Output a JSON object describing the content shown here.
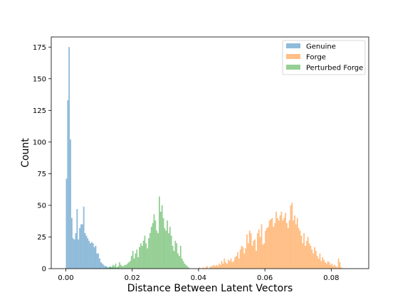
{
  "chart_data": {
    "type": "bar",
    "subtype": "histogram",
    "title": "",
    "xlabel": "Distance Between Latent Vectors",
    "ylabel": "Count",
    "xlim": [
      -0.0044,
      0.0913
    ],
    "ylim": [
      0,
      183
    ],
    "xticks": [
      0.0,
      0.02,
      0.04,
      0.06,
      0.08
    ],
    "xtick_labels": [
      "0.00",
      "0.02",
      "0.04",
      "0.06",
      "0.08"
    ],
    "yticks": [
      0,
      25,
      50,
      75,
      100,
      125,
      150,
      175
    ],
    "ytick_labels": [
      "0",
      "25",
      "50",
      "75",
      "100",
      "125",
      "150",
      "175"
    ],
    "grid": false,
    "legend_position": "top-right",
    "bin_width": 0.0004,
    "series": [
      {
        "name": "Genuine",
        "color": "#1f77b4",
        "alpha": 0.5,
        "bin_start": 0.0,
        "counts": [
          71,
          133,
          175,
          102,
          40,
          24,
          23,
          28,
          47,
          23,
          32,
          35,
          35,
          49,
          28,
          26,
          24,
          22,
          20,
          21,
          20,
          17,
          18,
          12,
          12,
          8,
          5,
          4,
          3,
          2,
          2,
          1,
          1,
          1,
          1,
          1,
          0,
          1,
          0,
          1
        ]
      },
      {
        "name": "Forge",
        "color": "#ff7f0e",
        "alpha": 0.5,
        "bin_start": 0.0,
        "counts": [
          0,
          0,
          0,
          0,
          0,
          0,
          0,
          0,
          0,
          0,
          0,
          0,
          0,
          0,
          0,
          0,
          0,
          0,
          0,
          0,
          0,
          0,
          0,
          0,
          0,
          0,
          0,
          0,
          0,
          0,
          0,
          0,
          0,
          0,
          0,
          0,
          0,
          0,
          0,
          0,
          0,
          0,
          0,
          0,
          0,
          0,
          0,
          0,
          0,
          0,
          0,
          0,
          0,
          0,
          0,
          0,
          0,
          0,
          0,
          0,
          0,
          0,
          0,
          0,
          0,
          0,
          0,
          0,
          0,
          0,
          0,
          0,
          0,
          0,
          0,
          0,
          0,
          0,
          0,
          0,
          0,
          0,
          0,
          0,
          0,
          0,
          0,
          0,
          0,
          0,
          0,
          0,
          0,
          0,
          0,
          0,
          0,
          0,
          0,
          0,
          1,
          0,
          0,
          1,
          0,
          1,
          2,
          0,
          1,
          2,
          2,
          3,
          2,
          3,
          2,
          4,
          3,
          6,
          4,
          8,
          5,
          4,
          7,
          6,
          8,
          5,
          6,
          9,
          10,
          13,
          8,
          15,
          18,
          17,
          12,
          16,
          27,
          20,
          30,
          28,
          18,
          22,
          23,
          14,
          28,
          31,
          25,
          35,
          19,
          20,
          30,
          32,
          33,
          38,
          39,
          40,
          33,
          36,
          45,
          40,
          38,
          42,
          45,
          38,
          40,
          44,
          36,
          32,
          38,
          50,
          52,
          38,
          42,
          35,
          40,
          32,
          30,
          26,
          20,
          28,
          18,
          22,
          25,
          20,
          18,
          15,
          12,
          17,
          14,
          10,
          8,
          12,
          6,
          9,
          7,
          5,
          4,
          6,
          5,
          3,
          4,
          2,
          3,
          2,
          1,
          8,
          5,
          1
        ]
      },
      {
        "name": "Perturbed Forge",
        "color": "#2ca02c",
        "alpha": 0.5,
        "bin_start": 0.0,
        "counts": [
          0,
          0,
          0,
          0,
          0,
          0,
          0,
          0,
          0,
          0,
          0,
          0,
          0,
          0,
          0,
          0,
          0,
          0,
          0,
          0,
          0,
          0,
          0,
          0,
          0,
          0,
          0,
          0,
          0,
          0,
          1,
          0,
          1,
          2,
          1,
          3,
          2,
          4,
          1,
          2,
          5,
          3,
          2,
          2,
          3,
          3,
          4,
          5,
          6,
          10,
          14,
          8,
          12,
          15,
          9,
          17,
          20,
          18,
          22,
          26,
          20,
          16,
          24,
          28,
          33,
          36,
          43,
          38,
          30,
          28,
          57,
          45,
          50,
          40,
          32,
          30,
          38,
          28,
          33,
          26,
          18,
          14,
          22,
          20,
          12,
          10,
          18,
          8,
          6,
          4,
          3,
          2,
          1
        ]
      }
    ]
  }
}
